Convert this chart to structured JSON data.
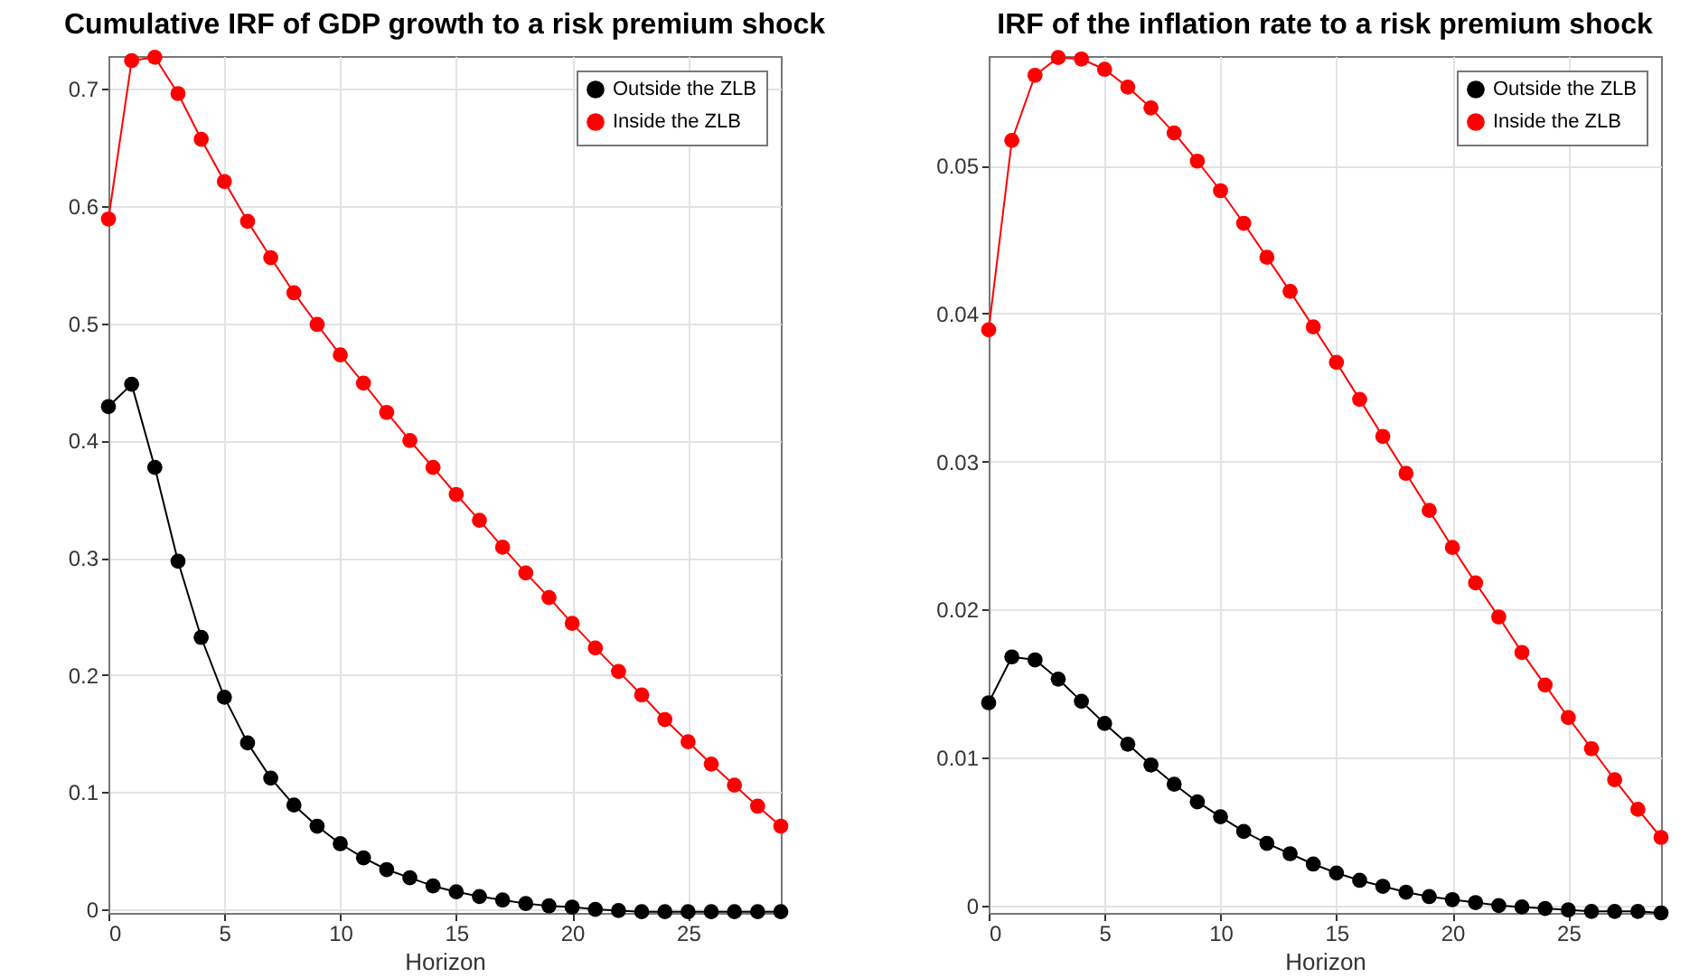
{
  "chart_data": [
    {
      "type": "line",
      "title": "Cumulative IRF of GDP growth to a risk premium shock",
      "xlabel": "Horizon",
      "x": [
        0,
        1,
        2,
        3,
        4,
        5,
        6,
        7,
        8,
        9,
        10,
        11,
        12,
        13,
        14,
        15,
        16,
        17,
        18,
        19,
        20,
        21,
        22,
        23,
        24,
        25,
        26,
        27,
        28,
        29
      ],
      "xlim": [
        0,
        29
      ],
      "xticks": [
        0,
        5,
        10,
        15,
        20,
        25
      ],
      "ylim": [
        -0.003,
        0.728
      ],
      "yticks": [
        0,
        0.1,
        0.2,
        0.3,
        0.4,
        0.5,
        0.6,
        0.7
      ],
      "grid": true,
      "legend": "top right",
      "marker": "circle",
      "line_style": "solid",
      "series": [
        {
          "name": "Outside the ZLB",
          "color": "#000000",
          "values": [
            0.429,
            0.448,
            0.377,
            0.297,
            0.232,
            0.181,
            0.142,
            0.112,
            0.089,
            0.071,
            0.056,
            0.044,
            0.034,
            0.027,
            0.02,
            0.015,
            0.011,
            0.008,
            0.005,
            0.003,
            0.002,
            0.0,
            -0.001,
            -0.002,
            -0.002,
            -0.002,
            -0.002,
            -0.002,
            -0.002,
            -0.002
          ]
        },
        {
          "name": "Inside the ZLB",
          "color": "#ff0000",
          "values": [
            0.589,
            0.724,
            0.727,
            0.696,
            0.657,
            0.621,
            0.587,
            0.556,
            0.526,
            0.499,
            0.473,
            0.449,
            0.424,
            0.4,
            0.377,
            0.354,
            0.332,
            0.309,
            0.287,
            0.266,
            0.244,
            0.223,
            0.203,
            0.183,
            0.162,
            0.143,
            0.124,
            0.106,
            0.088,
            0.071
          ]
        }
      ]
    },
    {
      "type": "line",
      "title": "IRF of the inflation rate to a risk premium shock",
      "xlabel": "Horizon",
      "x": [
        0,
        1,
        2,
        3,
        4,
        5,
        6,
        7,
        8,
        9,
        10,
        11,
        12,
        13,
        14,
        15,
        16,
        17,
        18,
        19,
        20,
        21,
        22,
        23,
        24,
        25,
        26,
        27,
        28,
        29
      ],
      "xlim": [
        0,
        29
      ],
      "xticks": [
        0,
        5,
        10,
        15,
        20,
        25
      ],
      "ylim": [
        -0.0005,
        0.0574
      ],
      "yticks": [
        0,
        0.01,
        0.02,
        0.03,
        0.04,
        0.05
      ],
      "grid": true,
      "legend": "top right",
      "marker": "circle",
      "line_style": "solid",
      "series": [
        {
          "name": "Outside the ZLB",
          "color": "#000000",
          "values": [
            0.0137,
            0.0168,
            0.0166,
            0.0153,
            0.0138,
            0.0123,
            0.0109,
            0.0095,
            0.0082,
            0.007,
            0.006,
            0.005,
            0.0042,
            0.0035,
            0.0028,
            0.0022,
            0.0017,
            0.0013,
            0.0009,
            0.0006,
            0.0004,
            0.0002,
            0.0,
            -0.0001,
            -0.0002,
            -0.0003,
            -0.0004,
            -0.0004,
            -0.0004,
            -0.0005
          ]
        },
        {
          "name": "Inside the ZLB",
          "color": "#ff0000",
          "values": [
            0.0389,
            0.0517,
            0.0561,
            0.0573,
            0.0572,
            0.0565,
            0.0553,
            0.0539,
            0.0522,
            0.0503,
            0.0483,
            0.0461,
            0.0438,
            0.0415,
            0.0391,
            0.0367,
            0.0342,
            0.0317,
            0.0292,
            0.0267,
            0.0242,
            0.0218,
            0.0195,
            0.0171,
            0.0149,
            0.0127,
            0.0106,
            0.0085,
            0.0065,
            0.0046
          ]
        }
      ]
    }
  ]
}
